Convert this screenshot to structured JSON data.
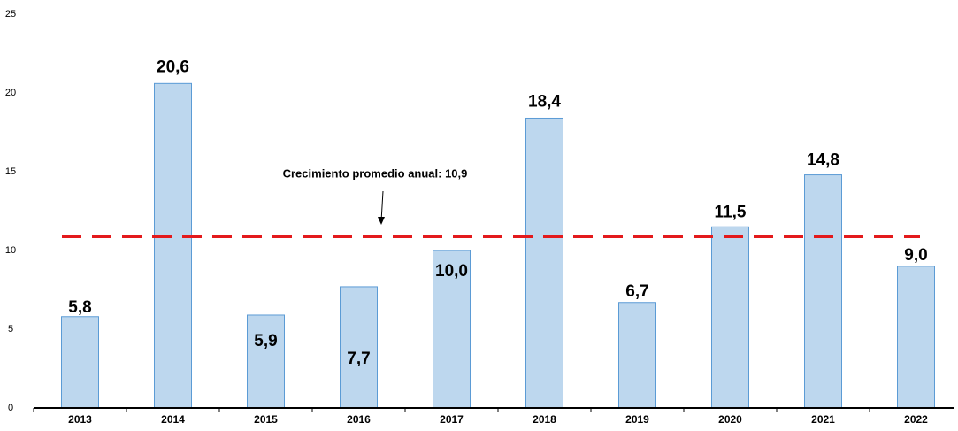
{
  "chart_data": {
    "type": "bar",
    "categories": [
      "2013",
      "2014",
      "2015",
      "2016",
      "2017",
      "2018",
      "2019",
      "2020",
      "2021",
      "2022"
    ],
    "values": [
      5.8,
      20.6,
      5.9,
      7.7,
      10.0,
      18.4,
      6.7,
      11.5,
      14.8,
      9.0
    ],
    "value_labels": [
      "5,8",
      "20,6",
      "5,9",
      "7,7",
      "10,0",
      "18,4",
      "6,7",
      "11,5",
      "14,8",
      "9,0"
    ],
    "color": "#bdd7ee",
    "edge_color": "#5b9bd5",
    "ylim": [
      0,
      25
    ],
    "yticks": [
      0,
      5,
      10,
      15,
      20,
      25
    ],
    "grid": false,
    "reference_line": {
      "value": 10.9,
      "label": "Crecimiento promedio anual: 10,9",
      "color": "#e31a1c"
    }
  }
}
